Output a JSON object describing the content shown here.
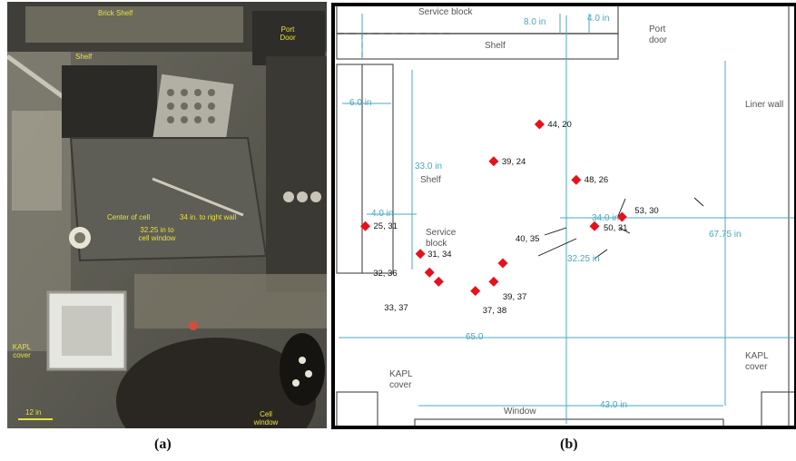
{
  "panel_a": {
    "caption": "(a)",
    "labels": {
      "brick_shelf": "Brick Shelf",
      "port_door": "Port Door",
      "center_of_cell": "Center of cell",
      "to_right_wall": "34 in. to right wall",
      "to_cell_window": "32.25 in to cell window",
      "kapl_cover": "KAPL cover",
      "scale": "12 in",
      "cell_window": "Cell window",
      "shelf": "Shelf"
    }
  },
  "panel_b": {
    "caption": "(b)",
    "labels": {
      "service_block_top": "Service block",
      "shelf_top": "Shelf",
      "port_door": "Port door",
      "liner_wall": "Liner wall",
      "shelf_left": "Shelf",
      "service_block_left": "Service block",
      "kapl_cover_left": "KAPL cover",
      "kapl_cover_right": "KAPL cover",
      "window": "Window"
    },
    "dimensions": {
      "top_80": "8.0 in",
      "top_40": "4.0 in",
      "left_60": "6.0 in",
      "shelf_330": "33.0 in",
      "shelf_40": "4.0 in",
      "width_34": "34.0 in",
      "height_3225": "32.25 in",
      "height_6775": "67.75 in",
      "width_650": "65.0",
      "window_430": "43.0 in"
    },
    "points": [
      {
        "label": "44, 20",
        "x": 44,
        "y": 20
      },
      {
        "label": "39, 24",
        "x": 39,
        "y": 24
      },
      {
        "label": "48, 26",
        "x": 48,
        "y": 26
      },
      {
        "label": "53, 30",
        "x": 53,
        "y": 30
      },
      {
        "label": "50, 31",
        "x": 50,
        "y": 31
      },
      {
        "label": "25, 31",
        "x": 25,
        "y": 31
      },
      {
        "label": "40, 35",
        "x": 40,
        "y": 35
      },
      {
        "label": "31, 34",
        "x": 31,
        "y": 34
      },
      {
        "label": "32, 36",
        "x": 32,
        "y": 36
      },
      {
        "label": "33, 37",
        "x": 33,
        "y": 37
      },
      {
        "label": "37, 38",
        "x": 37,
        "y": 38
      },
      {
        "label": "39, 37",
        "x": 39,
        "y": 37
      }
    ],
    "point_color": "#e8101a",
    "dimension_color": "#4aa8c2"
  }
}
